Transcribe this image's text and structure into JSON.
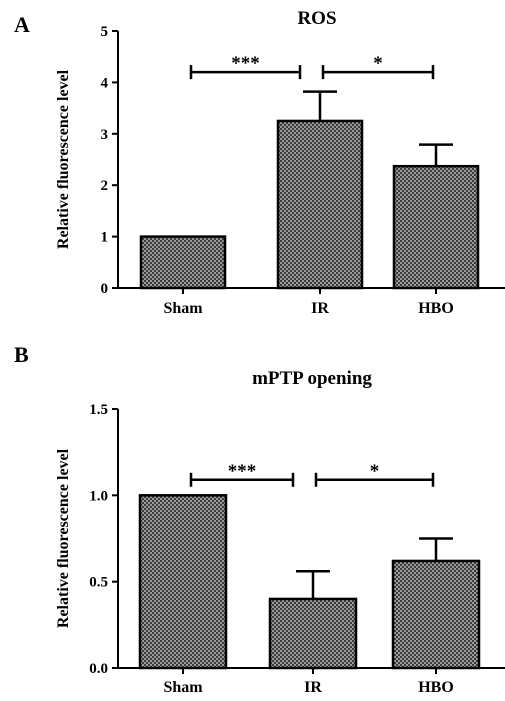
{
  "chart_data": [
    {
      "type": "bar",
      "panel_label": "A",
      "title": "ROS",
      "ylabel": "Relative fluorescence level",
      "categories": [
        "Sham",
        "IR",
        "HBO"
      ],
      "values": [
        1.0,
        3.25,
        2.37
      ],
      "errors": [
        0,
        0.57,
        0.42
      ],
      "ylim": [
        0,
        5
      ],
      "yticks": [
        0,
        1,
        2,
        3,
        4,
        5
      ],
      "ytick_labels": [
        "0",
        "1",
        "2",
        "3",
        "4",
        "5"
      ],
      "grid": false,
      "bar_fill": "crosshatch-gray",
      "significance": [
        {
          "from": "Sham",
          "to": "IR",
          "label": "***",
          "y": 4.2
        },
        {
          "from": "IR",
          "to": "HBO",
          "label": "*",
          "y": 4.2
        }
      ]
    },
    {
      "type": "bar",
      "panel_label": "B",
      "title": "mPTP opening",
      "ylabel": "Relative fluorescence level",
      "categories": [
        "Sham",
        "IR",
        "HBO"
      ],
      "values": [
        1.0,
        0.4,
        0.62
      ],
      "errors": [
        0,
        0.16,
        0.13
      ],
      "ylim": [
        0,
        1.5
      ],
      "yticks": [
        0,
        0.5,
        1.0,
        1.5
      ],
      "ytick_labels": [
        "0.0",
        "0.5",
        "1.0",
        "1.5"
      ],
      "grid": false,
      "bar_fill": "crosshatch-gray",
      "significance": [
        {
          "from": "Sham",
          "to": "IR",
          "label": "***",
          "y": 1.09
        },
        {
          "from": "IR",
          "to": "HBO",
          "label": "*",
          "y": 1.09
        }
      ]
    }
  ]
}
